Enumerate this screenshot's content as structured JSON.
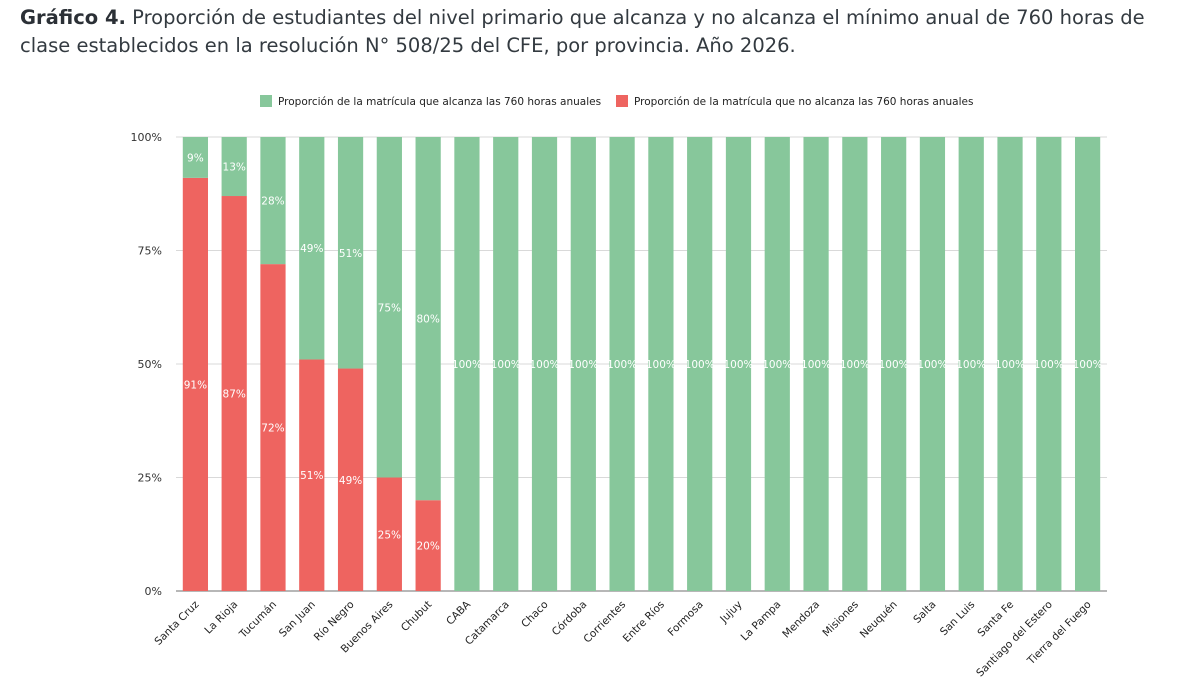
{
  "heading": {
    "bold_label": "Gráfico 4.",
    "text": "Proporción de estudiantes del nivel primario que alcanza y no alcanza el mínimo anual de 760 horas de clase establecidos en la resolución N° 508/25 del CFE, por provincia. Año 2026."
  },
  "chart_data": {
    "type": "bar",
    "stacked": true,
    "categories": [
      "Santa Cruz",
      "La Rioja",
      "Tucumán",
      "San Juan",
      "Río Negro",
      "Buenos Aires",
      "Chubut",
      "CABA",
      "Catamarca",
      "Chaco",
      "Córdoba",
      "Corrientes",
      "Entre Ríos",
      "Formosa",
      "Jujuy",
      "La Pampa",
      "Mendoza",
      "Misiones",
      "Neuquén",
      "Salta",
      "San Luis",
      "Santa Fe",
      "Santiago del Estero",
      "Tierra del Fuego"
    ],
    "series": [
      {
        "name": "Proporción de la matrícula que no alcanza las 760 horas anuales",
        "color": "#ee6460",
        "values": [
          91,
          87,
          72,
          51,
          49,
          25,
          20,
          0,
          0,
          0,
          0,
          0,
          0,
          0,
          0,
          0,
          0,
          0,
          0,
          0,
          0,
          0,
          0,
          0
        ],
        "labels": [
          "91%",
          "87%",
          "72%",
          "51%",
          "49%",
          "25%",
          "20%",
          "",
          "",
          "",
          "",
          "",
          "",
          "",
          "",
          "",
          "",
          "",
          "",
          "",
          "",
          "",
          "",
          ""
        ]
      },
      {
        "name": "Proporción de la matrícula que alcanza las 760 horas anuales",
        "color": "#87c79b",
        "values": [
          9,
          13,
          28,
          49,
          51,
          75,
          80,
          100,
          100,
          100,
          100,
          100,
          100,
          100,
          100,
          100,
          100,
          100,
          100,
          100,
          100,
          100,
          100,
          100
        ],
        "labels": [
          "9%",
          "13%",
          "28%",
          "49%",
          "51%",
          "75%",
          "80%",
          "100%",
          "100%",
          "100%",
          "100%",
          "100%",
          "100%",
          "100%",
          "100%",
          "100%",
          "100%",
          "100%",
          "100%",
          "100%",
          "100%",
          "100%",
          "100%",
          "100%"
        ]
      }
    ],
    "legend": [
      {
        "label": "Proporción de la matrícula que alcanza las 760 horas anuales",
        "color": "#87c79b"
      },
      {
        "label": "Proporción de la matrícula que no alcanza las 760 horas anuales",
        "color": "#ee6460"
      }
    ],
    "ylim": [
      0,
      100
    ],
    "yticks": [
      0,
      25,
      50,
      75,
      100
    ],
    "ytick_labels": [
      "0%",
      "25%",
      "50%",
      "75%",
      "100%"
    ],
    "legend_position": "top-center",
    "grid": true
  }
}
